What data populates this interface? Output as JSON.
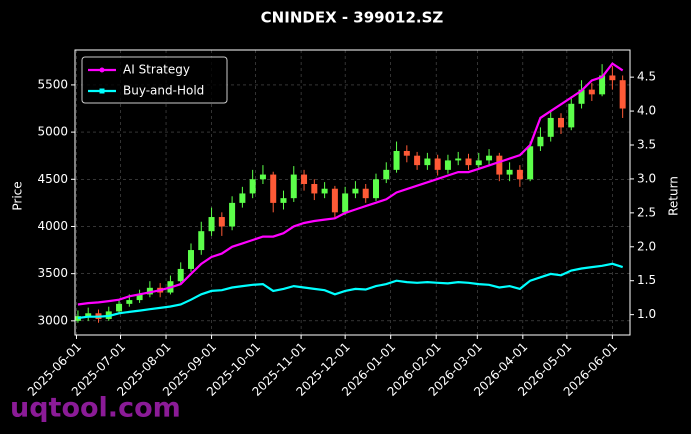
{
  "chart_data": {
    "type": "candlestick",
    "title": "CNINDEX - 399012.SZ",
    "ylabel": "Price",
    "y2label": "Return",
    "watermark": "uqtool.com",
    "grid": true,
    "legend": "upper left",
    "up_color": "#5cff4a",
    "down_color": "#ff5a36",
    "xlim": [
      "2025-05-31",
      "2026-06-13"
    ],
    "xticks": [
      "2025-06-01",
      "2025-07-01",
      "2025-08-01",
      "2025-09-01",
      "2025-10-01",
      "2025-11-01",
      "2025-12-01",
      "2026-01-01",
      "2026-02-01",
      "2026-03-01",
      "2026-04-01",
      "2026-05-01",
      "2026-06-01"
    ],
    "ylim": [
      2850,
      5870
    ],
    "yticks": [
      3000,
      3500,
      4000,
      4500,
      5000,
      5500
    ],
    "y2lim": [
      0.7,
      4.9
    ],
    "y2ticks": [
      {
        "value": 1,
        "label": "1.0"
      },
      1.5,
      {
        "value": 2,
        "label": "2.0"
      },
      2.5,
      {
        "value": 3,
        "label": "3.0"
      },
      3.5,
      {
        "value": 4,
        "label": "4.0"
      },
      4.5
    ],
    "x": [
      "2025-06-02",
      "2025-06-09",
      "2025-06-16",
      "2025-06-23",
      "2025-06-30",
      "2025-07-07",
      "2025-07-14",
      "2025-07-21",
      "2025-07-28",
      "2025-08-04",
      "2025-08-11",
      "2025-08-18",
      "2025-08-25",
      "2025-09-01",
      "2025-09-08",
      "2025-09-15",
      "2025-09-22",
      "2025-09-29",
      "2025-10-06",
      "2025-10-13",
      "2025-10-20",
      "2025-10-27",
      "2025-11-03",
      "2025-11-10",
      "2025-11-17",
      "2025-11-24",
      "2025-12-01",
      "2025-12-08",
      "2025-12-15",
      "2025-12-22",
      "2025-12-29",
      "2026-01-05",
      "2026-01-12",
      "2026-01-19",
      "2026-01-26",
      "2026-02-02",
      "2026-02-09",
      "2026-02-16",
      "2026-02-23",
      "2026-03-02",
      "2026-03-09",
      "2026-03-16",
      "2026-03-23",
      "2026-03-30",
      "2026-04-06",
      "2026-04-13",
      "2026-04-20",
      "2026-04-27",
      "2026-05-04",
      "2026-05-11",
      "2026-05-18",
      "2026-05-25",
      "2026-06-01",
      "2026-06-08"
    ],
    "open": [
      3000,
      3050,
      3080,
      3020,
      3100,
      3180,
      3220,
      3280,
      3350,
      3300,
      3420,
      3550,
      3750,
      3950,
      4100,
      4000,
      4250,
      4350,
      4500,
      4550,
      4250,
      4300,
      4550,
      4450,
      4350,
      4400,
      4150,
      4350,
      4400,
      4300,
      4500,
      4600,
      4800,
      4750,
      4650,
      4720,
      4600,
      4700,
      4720,
      4650,
      4700,
      4750,
      4550,
      4600,
      4500,
      4850,
      4950,
      5150,
      5050,
      5300,
      5450,
      5400,
      5600,
      5550
    ],
    "high": [
      3110,
      3140,
      3120,
      3150,
      3230,
      3280,
      3330,
      3420,
      3400,
      3480,
      3620,
      3820,
      4050,
      4200,
      4150,
      4320,
      4420,
      4600,
      4650,
      4580,
      4380,
      4640,
      4600,
      4500,
      4470,
      4430,
      4420,
      4480,
      4450,
      4560,
      4680,
      4900,
      4860,
      4790,
      4780,
      4760,
      4760,
      4790,
      4770,
      4780,
      4820,
      4780,
      4680,
      4650,
      4900,
      5050,
      5220,
      5200,
      5380,
      5550,
      5520,
      5720,
      5700,
      5600
    ],
    "low": [
      2980,
      3000,
      2980,
      3000,
      3070,
      3150,
      3190,
      3250,
      3250,
      3280,
      3390,
      3520,
      3700,
      3900,
      3900,
      3960,
      4200,
      4300,
      4450,
      4150,
      4180,
      4260,
      4380,
      4280,
      4300,
      4080,
      4120,
      4300,
      4250,
      4270,
      4460,
      4570,
      4680,
      4600,
      4600,
      4540,
      4560,
      4650,
      4600,
      4600,
      4650,
      4480,
      4480,
      4420,
      4480,
      4800,
      4900,
      4980,
      5020,
      5250,
      5330,
      5380,
      5450,
      5150
    ],
    "close": [
      3050,
      3080,
      3020,
      3100,
      3180,
      3220,
      3280,
      3350,
      3300,
      3420,
      3550,
      3750,
      3950,
      4100,
      4000,
      4250,
      4350,
      4500,
      4550,
      4250,
      4300,
      4550,
      4450,
      4350,
      4400,
      4150,
      4350,
      4400,
      4300,
      4500,
      4600,
      4800,
      4750,
      4650,
      4720,
      4600,
      4700,
      4720,
      4650,
      4700,
      4750,
      4550,
      4600,
      4500,
      4850,
      4950,
      5150,
      5050,
      5300,
      5450,
      5400,
      5600,
      5550,
      5250
    ],
    "series": [
      {
        "name": "AI Strategy",
        "color": "#ff00ff",
        "axis": "y2",
        "marker": "circle",
        "values": [
          1.15,
          1.17,
          1.18,
          1.2,
          1.22,
          1.27,
          1.3,
          1.33,
          1.36,
          1.4,
          1.45,
          1.6,
          1.75,
          1.85,
          1.9,
          2.0,
          2.05,
          2.1,
          2.15,
          2.15,
          2.2,
          2.3,
          2.35,
          2.38,
          2.4,
          2.42,
          2.5,
          2.55,
          2.6,
          2.65,
          2.7,
          2.8,
          2.85,
          2.9,
          2.95,
          3.0,
          3.05,
          3.1,
          3.1,
          3.15,
          3.2,
          3.25,
          3.3,
          3.35,
          3.5,
          3.9,
          4.0,
          4.1,
          4.2,
          4.3,
          4.45,
          4.5,
          4.7,
          4.6
        ]
      },
      {
        "name": "Buy-and-Hold",
        "color": "#00ffff",
        "axis": "y2",
        "marker": "square",
        "values": [
          0.95,
          0.97,
          0.97,
          0.98,
          1.02,
          1.04,
          1.06,
          1.08,
          1.1,
          1.12,
          1.15,
          1.22,
          1.3,
          1.35,
          1.36,
          1.4,
          1.42,
          1.44,
          1.45,
          1.35,
          1.38,
          1.42,
          1.4,
          1.38,
          1.36,
          1.3,
          1.35,
          1.38,
          1.37,
          1.42,
          1.45,
          1.5,
          1.48,
          1.47,
          1.48,
          1.47,
          1.46,
          1.48,
          1.47,
          1.45,
          1.44,
          1.4,
          1.42,
          1.38,
          1.5,
          1.55,
          1.6,
          1.58,
          1.65,
          1.68,
          1.7,
          1.72,
          1.75,
          1.7
        ]
      }
    ]
  }
}
